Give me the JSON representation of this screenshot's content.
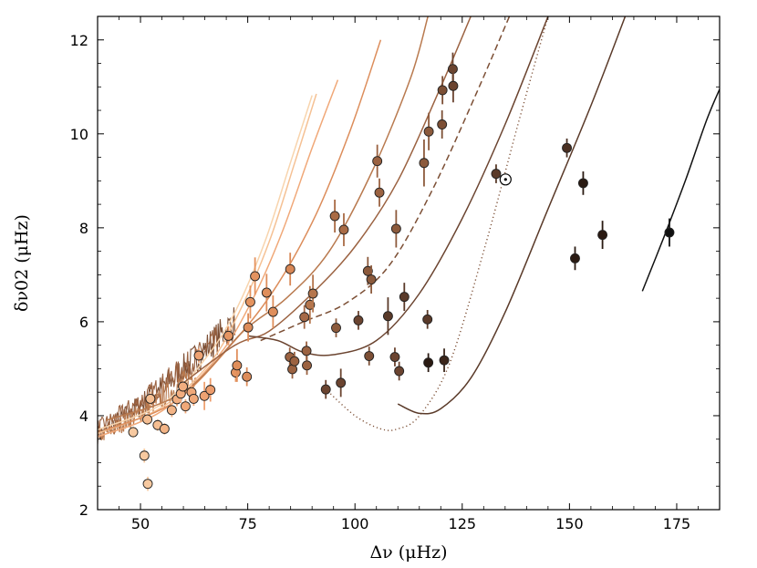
{
  "chart_data": {
    "type": "scatter",
    "xlabel": "Δν (μHz)",
    "ylabel": "δν02 (μHz)",
    "xlim": [
      40,
      185
    ],
    "ylim": [
      2,
      12.5
    ],
    "xticks": [
      50,
      75,
      100,
      125,
      150,
      175
    ],
    "yticks": [
      2,
      4,
      6,
      8,
      10,
      12
    ],
    "xtick_labels": [
      "50",
      "75",
      "100",
      "125",
      "150",
      "175"
    ],
    "ytick_labels": [
      "2",
      "4",
      "6",
      "8",
      "10",
      "12"
    ],
    "grid": false,
    "sun_marker": {
      "x": 135.1,
      "y": 9.03,
      "symbol": "☉"
    },
    "points": [
      {
        "x": 48.3,
        "y": 3.65,
        "err": 0.12,
        "color": "#f7c9a0"
      },
      {
        "x": 50.9,
        "y": 3.15,
        "err": 0.15,
        "color": "#f7c9a0"
      },
      {
        "x": 51.7,
        "y": 2.55,
        "err": 0.15,
        "color": "#f7c9a0"
      },
      {
        "x": 51.6,
        "y": 3.92,
        "err": 0.12,
        "color": "#f5be92"
      },
      {
        "x": 52.3,
        "y": 4.36,
        "err": 0.15,
        "color": "#f5be92"
      },
      {
        "x": 54.0,
        "y": 3.8,
        "err": 0.12,
        "color": "#f5be92"
      },
      {
        "x": 55.6,
        "y": 3.72,
        "err": 0.12,
        "color": "#f3b486"
      },
      {
        "x": 57.3,
        "y": 4.12,
        "err": 0.15,
        "color": "#f3b486"
      },
      {
        "x": 58.5,
        "y": 4.35,
        "err": 0.15,
        "color": "#f2ae80"
      },
      {
        "x": 59.4,
        "y": 4.47,
        "err": 0.2,
        "color": "#f2ae80"
      },
      {
        "x": 59.9,
        "y": 4.62,
        "err": 0.15,
        "color": "#f2ae80"
      },
      {
        "x": 60.5,
        "y": 4.2,
        "err": 0.15,
        "color": "#f0a878"
      },
      {
        "x": 61.9,
        "y": 4.5,
        "err": 0.15,
        "color": "#f0a878"
      },
      {
        "x": 62.4,
        "y": 4.36,
        "err": 0.15,
        "color": "#f0a878"
      },
      {
        "x": 63.6,
        "y": 5.28,
        "err": 0.15,
        "color": "#eea272"
      },
      {
        "x": 64.9,
        "y": 4.42,
        "err": 0.3,
        "color": "#eea272"
      },
      {
        "x": 66.3,
        "y": 4.55,
        "err": 0.25,
        "color": "#ec9c6c"
      },
      {
        "x": 70.5,
        "y": 5.7,
        "err": 0.2,
        "color": "#e59562"
      },
      {
        "x": 72.2,
        "y": 4.92,
        "err": 0.2,
        "color": "#e59562"
      },
      {
        "x": 72.5,
        "y": 5.07,
        "err": 0.35,
        "color": "#e08f5c"
      },
      {
        "x": 74.8,
        "y": 4.83,
        "err": 0.2,
        "color": "#dd8c5a"
      },
      {
        "x": 75.1,
        "y": 5.88,
        "err": 0.3,
        "color": "#dd8c5a"
      },
      {
        "x": 75.6,
        "y": 6.42,
        "err": 0.35,
        "color": "#e4935f"
      },
      {
        "x": 76.7,
        "y": 6.97,
        "err": 0.4,
        "color": "#e4935f"
      },
      {
        "x": 79.4,
        "y": 6.62,
        "err": 0.4,
        "color": "#df8e5b"
      },
      {
        "x": 80.9,
        "y": 6.21,
        "err": 0.35,
        "color": "#df8e5b"
      },
      {
        "x": 84.9,
        "y": 7.12,
        "err": 0.35,
        "color": "#d88756"
      },
      {
        "x": 84.8,
        "y": 5.25,
        "err": 0.2,
        "color": "#9b6241"
      },
      {
        "x": 85.4,
        "y": 4.99,
        "err": 0.2,
        "color": "#9b6241"
      },
      {
        "x": 85.9,
        "y": 5.16,
        "err": 0.2,
        "color": "#9b6241"
      },
      {
        "x": 88.2,
        "y": 6.1,
        "err": 0.25,
        "color": "#a66946"
      },
      {
        "x": 88.7,
        "y": 5.38,
        "err": 0.2,
        "color": "#9b6241"
      },
      {
        "x": 88.8,
        "y": 5.07,
        "err": 0.2,
        "color": "#9b6241"
      },
      {
        "x": 89.5,
        "y": 6.36,
        "err": 0.4,
        "color": "#b5764d"
      },
      {
        "x": 90.2,
        "y": 6.6,
        "err": 0.4,
        "color": "#b5764d"
      },
      {
        "x": 93.2,
        "y": 4.56,
        "err": 0.2,
        "color": "#6b4430"
      },
      {
        "x": 95.3,
        "y": 8.25,
        "err": 0.35,
        "color": "#a96b45"
      },
      {
        "x": 95.6,
        "y": 5.87,
        "err": 0.2,
        "color": "#8c5a3c"
      },
      {
        "x": 96.7,
        "y": 4.7,
        "err": 0.3,
        "color": "#6b4430"
      },
      {
        "x": 97.4,
        "y": 7.96,
        "err": 0.35,
        "color": "#a96b45"
      },
      {
        "x": 100.8,
        "y": 6.03,
        "err": 0.2,
        "color": "#6b4430"
      },
      {
        "x": 103.0,
        "y": 7.08,
        "err": 0.3,
        "color": "#8c5a3c"
      },
      {
        "x": 103.3,
        "y": 5.27,
        "err": 0.2,
        "color": "#7c4f35"
      },
      {
        "x": 103.8,
        "y": 6.9,
        "err": 0.3,
        "color": "#8c5a3c"
      },
      {
        "x": 105.2,
        "y": 9.42,
        "err": 0.35,
        "color": "#9b6241"
      },
      {
        "x": 105.7,
        "y": 8.75,
        "err": 0.3,
        "color": "#9b6241"
      },
      {
        "x": 107.7,
        "y": 6.12,
        "err": 0.4,
        "color": "#5a3a29"
      },
      {
        "x": 109.3,
        "y": 5.25,
        "err": 0.2,
        "color": "#6b4430"
      },
      {
        "x": 109.6,
        "y": 7.98,
        "err": 0.4,
        "color": "#8c5a3c"
      },
      {
        "x": 110.3,
        "y": 4.95,
        "err": 0.2,
        "color": "#6b4430"
      },
      {
        "x": 111.5,
        "y": 6.53,
        "err": 0.3,
        "color": "#5a3a29"
      },
      {
        "x": 116.1,
        "y": 9.38,
        "err": 0.5,
        "color": "#8c5a3c"
      },
      {
        "x": 116.9,
        "y": 6.05,
        "err": 0.2,
        "color": "#5a3a29"
      },
      {
        "x": 117.1,
        "y": 5.13,
        "err": 0.2,
        "color": "#2a1a12"
      },
      {
        "x": 117.2,
        "y": 10.05,
        "err": 0.4,
        "color": "#8c5a3c"
      },
      {
        "x": 120.3,
        "y": 10.2,
        "err": 0.3,
        "color": "#7c4f35"
      },
      {
        "x": 120.4,
        "y": 10.93,
        "err": 0.3,
        "color": "#7c4f35"
      },
      {
        "x": 120.8,
        "y": 5.18,
        "err": 0.25,
        "color": "#3b261b"
      },
      {
        "x": 122.8,
        "y": 11.38,
        "err": 0.35,
        "color": "#6b4430"
      },
      {
        "x": 122.9,
        "y": 11.02,
        "err": 0.35,
        "color": "#6b4430"
      },
      {
        "x": 132.9,
        "y": 9.15,
        "err": 0.2,
        "color": "#5a3a29"
      },
      {
        "x": 149.4,
        "y": 9.7,
        "err": 0.2,
        "color": "#4a3022"
      },
      {
        "x": 151.3,
        "y": 7.35,
        "err": 0.25,
        "color": "#2a1a12"
      },
      {
        "x": 153.2,
        "y": 8.95,
        "err": 0.25,
        "color": "#2a1a12"
      },
      {
        "x": 157.7,
        "y": 7.85,
        "err": 0.3,
        "color": "#2a1a12"
      },
      {
        "x": 173.3,
        "y": 7.9,
        "err": 0.3,
        "color": "#111111"
      }
    ],
    "tracks": [
      {
        "style": "solid",
        "color": "#f8d4ad",
        "points": [
          [
            40,
            3.7
          ],
          [
            55,
            4.25
          ],
          [
            65,
            5.2
          ],
          [
            72,
            6.2
          ],
          [
            79,
            7.7
          ],
          [
            85,
            9.4
          ],
          [
            90,
            10.82
          ]
        ]
      },
      {
        "style": "solid",
        "color": "#f5c194",
        "points": [
          [
            40,
            3.62
          ],
          [
            55,
            4.18
          ],
          [
            66,
            5.1
          ],
          [
            73,
            6.2
          ],
          [
            80,
            7.7
          ],
          [
            86,
            9.4
          ],
          [
            91,
            10.85
          ]
        ]
      },
      {
        "style": "solid",
        "color": "#f0a878",
        "points": [
          [
            40,
            3.55
          ],
          [
            55,
            4.1
          ],
          [
            68,
            5.25
          ],
          [
            76,
            6.45
          ],
          [
            83,
            7.9
          ],
          [
            90,
            9.7
          ],
          [
            96,
            11.15
          ]
        ]
      },
      {
        "style": "solid",
        "color": "#dc8d5b",
        "points": [
          [
            42,
            3.7
          ],
          [
            58,
            4.3
          ],
          [
            72,
            5.6
          ],
          [
            82,
            6.8
          ],
          [
            91,
            8.3
          ],
          [
            99,
            10.1
          ],
          [
            106,
            12.0
          ]
        ]
      },
      {
        "style": "solid",
        "color": "#b97a4f",
        "points": [
          [
            42,
            3.9
          ],
          [
            60,
            4.5
          ],
          [
            74,
            5.8
          ],
          [
            84,
            6.5
          ],
          [
            94,
            7.5
          ],
          [
            104,
            9.2
          ],
          [
            113,
            11.2
          ],
          [
            117,
            12.5
          ]
        ]
      },
      {
        "style": "solid",
        "color": "#9b6241",
        "points": [
          [
            60,
            4.7
          ],
          [
            72,
            5.5
          ],
          [
            80,
            5.8
          ],
          [
            90,
            6.6
          ],
          [
            100,
            7.6
          ],
          [
            110,
            9.0
          ],
          [
            120,
            11.0
          ],
          [
            127,
            12.5
          ]
        ]
      },
      {
        "style": "dashed",
        "color": "#7c4f35",
        "points": [
          [
            78,
            5.6
          ],
          [
            88,
            6.0
          ],
          [
            98,
            6.4
          ],
          [
            108,
            7.2
          ],
          [
            118,
            8.8
          ],
          [
            128,
            10.8
          ],
          [
            136,
            12.5
          ]
        ]
      },
      {
        "style": "solid",
        "color": "#6b4430",
        "points": [
          [
            75,
            5.7
          ],
          [
            82,
            5.6
          ],
          [
            88,
            5.35
          ],
          [
            95,
            5.3
          ],
          [
            105,
            5.6
          ],
          [
            115,
            6.6
          ],
          [
            125,
            8.2
          ],
          [
            135,
            10.2
          ],
          [
            145,
            12.5
          ]
        ]
      },
      {
        "style": "dotted",
        "color": "#7c4f35",
        "points": [
          [
            93,
            4.58
          ],
          [
            100,
            4.0
          ],
          [
            106,
            3.72
          ],
          [
            110,
            3.72
          ],
          [
            115,
            4.0
          ],
          [
            122,
            5.1
          ],
          [
            130,
            7.5
          ],
          [
            138,
            10.2
          ],
          [
            145,
            12.5
          ]
        ]
      },
      {
        "style": "solid",
        "color": "#5a3a29",
        "points": [
          [
            110,
            4.25
          ],
          [
            115,
            4.05
          ],
          [
            120,
            4.15
          ],
          [
            127,
            4.8
          ],
          [
            135,
            6.2
          ],
          [
            145,
            8.4
          ],
          [
            155,
            10.6
          ],
          [
            163,
            12.5
          ]
        ]
      },
      {
        "style": "solid",
        "color": "#111111",
        "points": [
          [
            167,
            6.65
          ],
          [
            172,
            7.8
          ],
          [
            177,
            9.0
          ],
          [
            182,
            10.3
          ],
          [
            185,
            10.95
          ]
        ]
      }
    ],
    "noisy_tracks": [
      {
        "color": "#7c4f35",
        "x0": 40,
        "x1": 72,
        "y0": 3.6,
        "y1": 6.0,
        "amp": 0.3
      },
      {
        "color": "#9b6241",
        "x0": 40,
        "x1": 68,
        "y0": 3.75,
        "y1": 5.6,
        "amp": 0.25
      },
      {
        "color": "#b97a4f",
        "x0": 40,
        "x1": 63,
        "y0": 3.55,
        "y1": 4.9,
        "amp": 0.22
      }
    ]
  }
}
